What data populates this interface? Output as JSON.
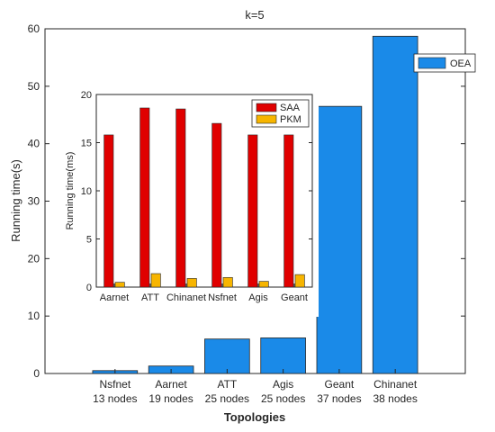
{
  "chart_data": [
    {
      "type": "bar",
      "title": "k=5",
      "xlabel": "Topologies",
      "ylabel": "Running time(s)",
      "ylim": [
        0,
        60
      ],
      "yticks": [
        0,
        10,
        20,
        30,
        40,
        50,
        60
      ],
      "categories": [
        [
          "Nsfnet",
          "13 nodes"
        ],
        [
          "Aarnet",
          "19 nodes"
        ],
        [
          "ATT",
          "25 nodes"
        ],
        [
          "Agis",
          "25 nodes"
        ],
        [
          "Geant",
          "37 nodes"
        ],
        [
          "Chinanet",
          "38 nodes"
        ]
      ],
      "series": [
        {
          "name": "OEA",
          "color": "#1a8ae8",
          "values": [
            0.5,
            1.3,
            6.0,
            6.2,
            46.5,
            58.7
          ]
        }
      ],
      "legend_position": "top-right",
      "grid": false
    },
    {
      "type": "bar",
      "title": "",
      "xlabel": "",
      "ylabel": "Running time(ms)",
      "ylim": [
        0,
        20
      ],
      "yticks": [
        0,
        5,
        10,
        15,
        20
      ],
      "categories": [
        "Aarnet",
        "ATT",
        "Chinanet",
        "Nsfnet",
        "Agis",
        "Geant"
      ],
      "series": [
        {
          "name": "SAA",
          "color": "#e00000",
          "values": [
            15.8,
            18.6,
            18.5,
            17.0,
            15.8,
            15.8
          ]
        },
        {
          "name": "PKM",
          "color": "#f7b500",
          "values": [
            0.5,
            1.4,
            0.9,
            1.0,
            0.6,
            1.3
          ]
        }
      ],
      "legend_position": "top-right",
      "grid": false
    }
  ]
}
